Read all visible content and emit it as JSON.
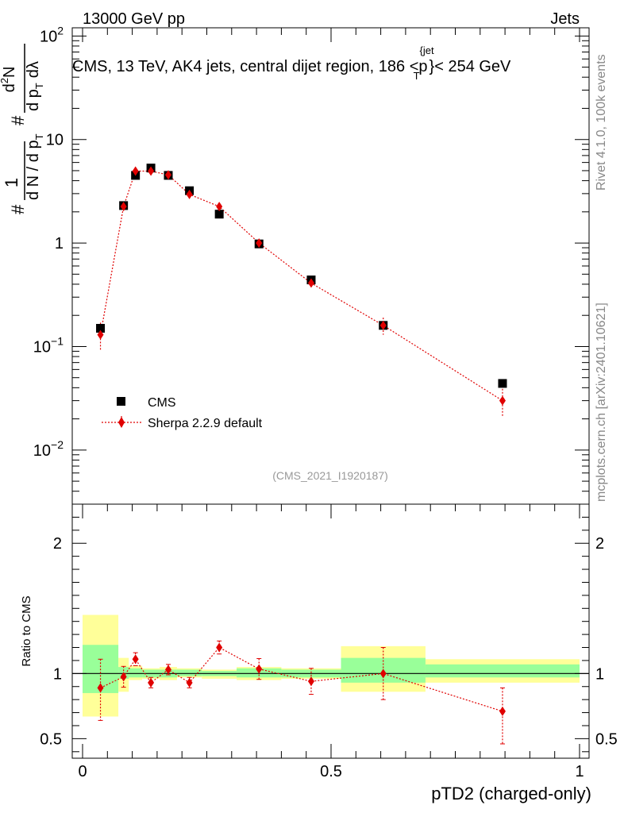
{
  "header": {
    "left": "13000 GeV pp",
    "right": "Jets",
    "plot_title": "CMS, 13 TeV, AK4 jets, central dijet region, 186 <p",
    "plot_title_sup": "{jet",
    "plot_title_sub": "T",
    "plot_title_end": "}< 254 GeV",
    "side_rivet": "Rivet 4.1.0,  100k events",
    "side_mcplots": "mcplots.cern.ch [arXiv:2401.10621]",
    "watermark": "(CMS_2021_I1920187)"
  },
  "yaxis_main": {
    "label_frac1_num": "1",
    "label_frac1_den": "d N / d p",
    "label_frac1_den_sub": "T",
    "label_hash1": "#",
    "label_frac2_num": "d",
    "label_frac2_num_sup": "2",
    "label_frac2_num_end": "N",
    "label_frac2_den": "d p",
    "label_frac2_den_sub": "T",
    "label_frac2_den_end": "dλ",
    "label_hash2": "#",
    "ticks": [
      {
        "value": 100,
        "base": "10",
        "exp": "2"
      },
      {
        "value": 10,
        "base": "10",
        "exp": ""
      },
      {
        "value": 1,
        "base": "1",
        "exp": ""
      },
      {
        "value": 0.1,
        "base": "10",
        "exp": "−1"
      },
      {
        "value": 0.01,
        "base": "10",
        "exp": "−2"
      }
    ]
  },
  "yaxis_ratio": {
    "label": "Ratio to CMS",
    "ticks": [
      "2",
      "1",
      "0.5"
    ]
  },
  "xaxis": {
    "label": "pTD2 (charged-only)",
    "ticks": [
      "0",
      "0.5",
      "1"
    ]
  },
  "legend": {
    "cms": "CMS",
    "sherpa": "Sherpa 2.2.9 default"
  },
  "colors": {
    "data": "#000000",
    "mc": "#e00000",
    "band_outer": "#ffff99",
    "band_inner": "#99ff99"
  },
  "chart_data": {
    "type": "scatter",
    "log_y": true,
    "xlim": [
      0,
      1
    ],
    "ylim": [
      0.003,
      120
    ],
    "ratio_ylim": [
      0.35,
      2.3
    ],
    "bin_edges": [
      0.0,
      0.072,
      0.093,
      0.12,
      0.155,
      0.19,
      0.24,
      0.31,
      0.4,
      0.52,
      0.69,
      1.0
    ],
    "series": [
      {
        "name": "CMS",
        "x": [
          0.036,
          0.0825,
          0.1065,
          0.1375,
          0.1725,
          0.215,
          0.275,
          0.355,
          0.46,
          0.605,
          0.845
        ],
        "values": [
          0.15,
          2.3,
          4.5,
          5.3,
          4.5,
          3.2,
          1.9,
          0.98,
          0.44,
          0.16,
          0.044
        ]
      },
      {
        "name": "Sherpa 2.2.9 default",
        "x": [
          0.036,
          0.0825,
          0.1065,
          0.1375,
          0.1725,
          0.215,
          0.275,
          0.355,
          0.46,
          0.605,
          0.845
        ],
        "values": [
          0.13,
          2.25,
          4.95,
          4.95,
          4.55,
          2.95,
          2.25,
          1.0,
          0.41,
          0.16,
          0.03
        ],
        "err_low": [
          0.04,
          0.1,
          0.12,
          0.12,
          0.12,
          0.1,
          0.08,
          0.04,
          0.03,
          0.03,
          0.009
        ],
        "err_high": [
          0.04,
          0.1,
          0.12,
          0.12,
          0.12,
          0.1,
          0.08,
          0.04,
          0.03,
          0.03,
          0.009
        ]
      }
    ],
    "ratio": {
      "values": [
        0.89,
        0.975,
        1.11,
        0.93,
        1.03,
        0.93,
        1.2,
        1.035,
        0.94,
        1.0,
        0.71
      ],
      "err_low": [
        0.25,
        0.08,
        0.05,
        0.04,
        0.04,
        0.04,
        0.05,
        0.08,
        0.1,
        0.2,
        0.25
      ],
      "err_high": [
        0.22,
        0.08,
        0.05,
        0.04,
        0.04,
        0.04,
        0.05,
        0.08,
        0.1,
        0.2,
        0.18
      ],
      "band_inner": [
        [
          0.85,
          1.22
        ],
        [
          0.96,
          1.05
        ],
        [
          0.97,
          1.04
        ],
        [
          0.97,
          1.03
        ],
        [
          0.97,
          1.03
        ],
        [
          0.98,
          1.03
        ],
        [
          0.98,
          1.02
        ],
        [
          0.97,
          1.04
        ],
        [
          0.97,
          1.03
        ],
        [
          0.93,
          1.12
        ],
        [
          0.97,
          1.07
        ]
      ],
      "band_outer": [
        [
          0.67,
          1.45
        ],
        [
          0.86,
          1.12
        ],
        [
          0.95,
          1.06
        ],
        [
          0.96,
          1.04
        ],
        [
          0.95,
          1.05
        ],
        [
          0.97,
          1.04
        ],
        [
          0.96,
          1.03
        ],
        [
          0.95,
          1.05
        ],
        [
          0.96,
          1.04
        ],
        [
          0.86,
          1.21
        ],
        [
          0.93,
          1.11
        ]
      ]
    }
  }
}
